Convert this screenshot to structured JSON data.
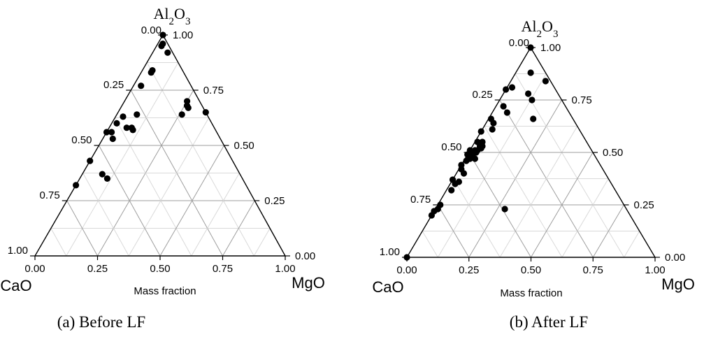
{
  "chart_data": [
    {
      "type": "scatter",
      "subtype": "ternary",
      "caption": "(a) Before LF",
      "xlabel": "Mass fraction",
      "vertices": {
        "top": "Al2O3",
        "left": "CaO",
        "right": "MgO"
      },
      "tick_labels": [
        "0.00",
        "0.25",
        "0.50",
        "0.75",
        "1.00"
      ],
      "grid": true,
      "point_fields": [
        "CaO",
        "MgO",
        "Al2O3"
      ],
      "points": [
        [
          0.0,
          0.0,
          1.0
        ],
        [
          0.02,
          0.02,
          0.96
        ],
        [
          0.03,
          0.02,
          0.95
        ],
        [
          0.02,
          0.06,
          0.92
        ],
        [
          0.12,
          0.04,
          0.84
        ],
        [
          0.13,
          0.04,
          0.83
        ],
        [
          0.2,
          0.03,
          0.77
        ],
        [
          0.05,
          0.25,
          0.7
        ],
        [
          0.06,
          0.26,
          0.68
        ],
        [
          0.06,
          0.27,
          0.67
        ],
        [
          0.0,
          0.35,
          0.65
        ],
        [
          0.1,
          0.26,
          0.64
        ],
        [
          0.28,
          0.08,
          0.64
        ],
        [
          0.34,
          0.03,
          0.63
        ],
        [
          0.38,
          0.02,
          0.6
        ],
        [
          0.35,
          0.07,
          0.58
        ],
        [
          0.33,
          0.09,
          0.58
        ],
        [
          0.33,
          0.1,
          0.57
        ],
        [
          0.42,
          0.02,
          0.56
        ],
        [
          0.44,
          0.0,
          0.56
        ],
        [
          0.43,
          0.04,
          0.53
        ],
        [
          0.57,
          0.0,
          0.43
        ],
        [
          0.55,
          0.08,
          0.37
        ],
        [
          0.54,
          0.11,
          0.35
        ],
        [
          0.68,
          0.0,
          0.32
        ]
      ]
    },
    {
      "type": "scatter",
      "subtype": "ternary",
      "caption": "(b) After LF",
      "xlabel": "Mass fraction",
      "vertices": {
        "top": "Al2O3",
        "left": "CaO",
        "right": "MgO"
      },
      "tick_labels": [
        "0.00",
        "0.25",
        "0.50",
        "0.75",
        "1.00"
      ],
      "grid": true,
      "point_fields": [
        "CaO",
        "MgO",
        "Al2O3"
      ],
      "points": [
        [
          0.0,
          0.0,
          1.0
        ],
        [
          0.06,
          0.06,
          0.88
        ],
        [
          0.02,
          0.14,
          0.84
        ],
        [
          0.17,
          0.02,
          0.81
        ],
        [
          0.2,
          0.0,
          0.8
        ],
        [
          0.12,
          0.1,
          0.78
        ],
        [
          0.12,
          0.13,
          0.75
        ],
        [
          0.25,
          0.03,
          0.72
        ],
        [
          0.25,
          0.06,
          0.69
        ],
        [
          0.16,
          0.18,
          0.66
        ],
        [
          0.33,
          0.01,
          0.66
        ],
        [
          0.33,
          0.03,
          0.64
        ],
        [
          0.35,
          0.04,
          0.61
        ],
        [
          0.4,
          0.0,
          0.6
        ],
        [
          0.42,
          0.03,
          0.55
        ],
        [
          0.44,
          0.01,
          0.55
        ],
        [
          0.43,
          0.04,
          0.53
        ],
        [
          0.44,
          0.03,
          0.53
        ],
        [
          0.44,
          0.04,
          0.52
        ],
        [
          0.46,
          0.03,
          0.51
        ],
        [
          0.47,
          0.02,
          0.51
        ],
        [
          0.47,
          0.03,
          0.5
        ],
        [
          0.49,
          0.0,
          0.51
        ],
        [
          0.49,
          0.02,
          0.49
        ],
        [
          0.49,
          0.04,
          0.47
        ],
        [
          0.51,
          0.0,
          0.49
        ],
        [
          0.51,
          0.02,
          0.47
        ],
        [
          0.53,
          0.01,
          0.46
        ],
        [
          0.56,
          0.0,
          0.44
        ],
        [
          0.57,
          0.01,
          0.42
        ],
        [
          0.57,
          0.03,
          0.4
        ],
        [
          0.61,
          0.03,
          0.36
        ],
        [
          0.63,
          0.0,
          0.37
        ],
        [
          0.63,
          0.02,
          0.35
        ],
        [
          0.66,
          0.02,
          0.32
        ],
        [
          0.49,
          0.28,
          0.23
        ],
        [
          0.74,
          0.01,
          0.25
        ],
        [
          0.76,
          0.01,
          0.23
        ],
        [
          0.78,
          0.0,
          0.22
        ],
        [
          0.8,
          0.0,
          0.2
        ],
        [
          1.0,
          0.0,
          0.0
        ]
      ]
    }
  ]
}
